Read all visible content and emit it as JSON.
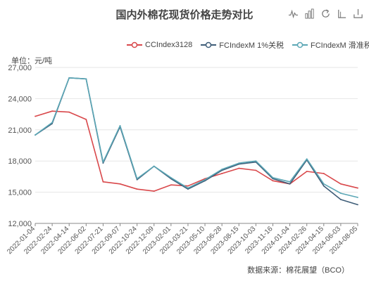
{
  "title": "国内外棉花现货价格走势对比",
  "unit_label": "单位：元/吨",
  "source_label": "数据来源：棉花展望（BCO）",
  "toolbox": {
    "icons": [
      "line-chart-icon",
      "bar-chart-icon",
      "restore-icon",
      "tiled-icon",
      "save-image-icon"
    ]
  },
  "colors": {
    "cc": "#d9484b",
    "fc1": "#3e5d78",
    "fc2": "#5aa6b5"
  },
  "chart_data": {
    "type": "line",
    "title": "国内外棉花现货价格走势对比",
    "ylabel": "单位：元/吨",
    "ylim": [
      12000,
      27000
    ],
    "yticks": [
      "27,000",
      "24,000",
      "21,000",
      "18,000",
      "15,000",
      "12,000"
    ],
    "ytick_values": [
      27000,
      24000,
      21000,
      18000,
      15000,
      12000
    ],
    "grid": true,
    "legend_position": "top",
    "x": [
      "2022-01-04",
      "2022-02-24",
      "2022-04-14",
      "2022-06-02",
      "2022-07-21",
      "2022-09-07",
      "2022-10-24",
      "2022-12-09",
      "2023-02-01",
      "2023-03-21",
      "2023-05-10",
      "2023-06-28",
      "2023-08-15",
      "2023-10-03",
      "2023-11-16",
      "2024-01-04",
      "2024-02-26",
      "2024-04-15",
      "2024-06-03",
      "2024-08-05"
    ],
    "series": [
      {
        "name": "CCIndex3128",
        "color_key": "cc",
        "values": [
          22300,
          22800,
          22700,
          22000,
          16000,
          15800,
          15300,
          15100,
          15700,
          15600,
          16300,
          16800,
          17300,
          17100,
          16100,
          15800,
          17000,
          16800,
          15800,
          15400
        ]
      },
      {
        "name": "FCIndexM 1%关税",
        "color_key": "fc1",
        "values": [
          20500,
          21600,
          26000,
          25900,
          17800,
          21300,
          16200,
          17500,
          16300,
          15300,
          16100,
          17100,
          17700,
          17900,
          16300,
          15800,
          18100,
          15600,
          14300,
          13800
        ]
      },
      {
        "name": "FCIndexM 滑准税",
        "color_key": "fc2",
        "values": [
          20500,
          21700,
          26000,
          25900,
          17900,
          21400,
          16300,
          17500,
          16400,
          15400,
          16200,
          17200,
          17800,
          18000,
          16400,
          16000,
          18200,
          15800,
          14900,
          14500
        ]
      }
    ]
  }
}
